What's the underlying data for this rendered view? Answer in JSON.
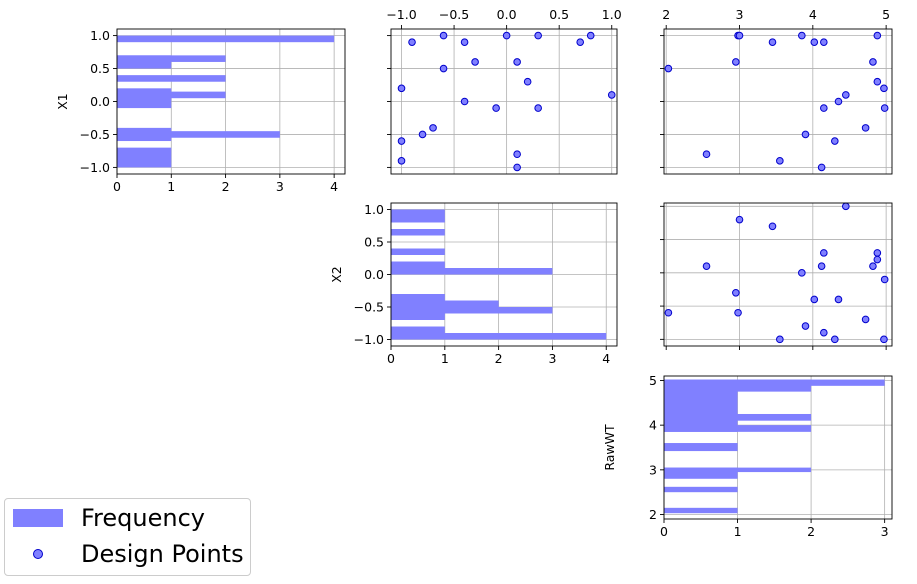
{
  "chart_data": {
    "type": "pairplot",
    "variables": [
      "X1",
      "X2",
      "RawWT"
    ],
    "colors": {
      "hist": "#8080ff",
      "marker_fill": "#8080ff",
      "marker_edge": "#0000cc",
      "grid": "#b0b0b0"
    },
    "points": {
      "X1": [
        1.0,
        1.0,
        1.0,
        1.0,
        0.9,
        0.9,
        0.9,
        0.6,
        0.6,
        0.5,
        0.3,
        0.2,
        0.1,
        0.0,
        -0.1,
        -0.1,
        -0.4,
        -0.5,
        -0.6,
        -0.8,
        -0.9,
        -1.0
      ],
      "X2": [
        -0.6,
        0.0,
        0.3,
        0.8,
        -0.9,
        0.7,
        -0.4,
        -0.3,
        0.1,
        -0.6,
        0.2,
        -1.0,
        1.0,
        -0.4,
        0.3,
        -0.1,
        -0.7,
        -0.8,
        -1.0,
        0.1,
        -1.0,
        0.1
      ],
      "RawWT": [
        2.98,
        3.85,
        4.88,
        3.0,
        4.15,
        3.45,
        4.02,
        2.95,
        4.82,
        2.03,
        4.88,
        4.97,
        4.45,
        4.35,
        4.15,
        4.98,
        4.72,
        3.9,
        4.3,
        2.55,
        3.55,
        4.12
      ]
    },
    "panels": [
      {
        "row": 0,
        "col": 0,
        "kind": "hist",
        "orientation": "horizontal",
        "variable": "X1",
        "ylabel": "X1",
        "xlim": [
          0,
          4.2
        ],
        "ylim": [
          -1.1,
          1.1
        ],
        "xticks": [
          0,
          1,
          2,
          3,
          4
        ],
        "xticklabels": [
          "0",
          "1",
          "2",
          "3",
          "4"
        ],
        "yticks": [
          -1.0,
          -0.5,
          0.0,
          0.5,
          1.0
        ],
        "yticklabels": [
          "−1.0",
          "−0.5",
          "0.0",
          "0.5",
          "1.0"
        ],
        "bars": [
          {
            "y0": -1.0,
            "y1": -0.7,
            "value": 1
          },
          {
            "y0": -0.6,
            "y1": -0.4,
            "value": 1
          },
          {
            "y0": -0.45,
            "y1": -0.55,
            "value": 3
          },
          {
            "y0": -0.1,
            "y1": 0.2,
            "value": 1
          },
          {
            "y0": 0.05,
            "y1": 0.15,
            "value": 2
          },
          {
            "y0": 0.3,
            "y1": 0.4,
            "value": 2
          },
          {
            "y0": 0.5,
            "y1": 0.7,
            "value": 1
          },
          {
            "y0": 0.6,
            "y1": 0.7,
            "value": 2
          },
          {
            "y0": 0.9,
            "y1": 1.0,
            "value": 4
          }
        ]
      },
      {
        "row": 0,
        "col": 1,
        "kind": "scatter",
        "x": "X2",
        "y": "X1",
        "xlim": [
          -1.1,
          1.05
        ],
        "ylim": [
          -1.1,
          1.1
        ],
        "xticks": [
          -1.0,
          -0.5,
          0.0,
          0.5,
          1.0
        ],
        "xticklabels": [
          "−1.0",
          "−0.5",
          "0.0",
          "0.5",
          "1.0"
        ],
        "xtick_side": "top",
        "yticks": [
          -1.0,
          -0.5,
          0.0,
          0.5,
          1.0
        ]
      },
      {
        "row": 0,
        "col": 2,
        "kind": "scatter",
        "x": "RawWT",
        "y": "X1",
        "xlim": [
          1.97,
          5.08
        ],
        "ylim": [
          -1.1,
          1.1
        ],
        "xticks": [
          2,
          3,
          4,
          5
        ],
        "xticklabels": [
          "2",
          "3",
          "4",
          "5"
        ],
        "xtick_side": "top",
        "yticks": [
          -1.0,
          -0.5,
          0.0,
          0.5,
          1.0
        ]
      },
      {
        "row": 1,
        "col": 1,
        "kind": "hist",
        "orientation": "horizontal",
        "variable": "X2",
        "ylabel": "X2",
        "xlim": [
          0,
          4.2
        ],
        "ylim": [
          -1.1,
          1.1
        ],
        "xticks": [
          0,
          1,
          2,
          3,
          4
        ],
        "xticklabels": [
          "0",
          "1",
          "2",
          "3",
          "4"
        ],
        "yticks": [
          -1.0,
          -0.5,
          0.0,
          0.5,
          1.0
        ],
        "yticklabels": [
          "−1.0",
          "−0.5",
          "0.0",
          "0.5",
          "1.0"
        ],
        "bars": [
          {
            "y0": -1.0,
            "y1": -0.8,
            "value": 1
          },
          {
            "y0": -0.9,
            "y1": -1.0,
            "value": 4
          },
          {
            "y0": -0.7,
            "y1": -0.3,
            "value": 1
          },
          {
            "y0": -0.6,
            "y1": -0.5,
            "value": 3
          },
          {
            "y0": -0.5,
            "y1": -0.4,
            "value": 2
          },
          {
            "y0": 0.0,
            "y1": 0.2,
            "value": 1
          },
          {
            "y0": 0.0,
            "y1": 0.1,
            "value": 3
          },
          {
            "y0": 0.3,
            "y1": 0.4,
            "value": 1
          },
          {
            "y0": 0.6,
            "y1": 0.7,
            "value": 1
          },
          {
            "y0": 0.8,
            "y1": 1.0,
            "value": 1
          }
        ]
      },
      {
        "row": 1,
        "col": 2,
        "kind": "scatter",
        "x": "RawWT",
        "y": "X2",
        "xlim": [
          1.97,
          5.08
        ],
        "ylim": [
          -1.1,
          1.05
        ],
        "xticks": [
          2,
          3,
          4,
          5
        ],
        "yticks": [
          -1.0,
          -0.5,
          0.0,
          0.5,
          1.0
        ]
      },
      {
        "row": 2,
        "col": 2,
        "kind": "hist",
        "orientation": "horizontal",
        "variable": "RawWT",
        "ylabel": "RawWT",
        "xlim": [
          0,
          3.1
        ],
        "ylim": [
          1.9,
          5.1
        ],
        "xticks": [
          0,
          1,
          2,
          3
        ],
        "xticklabels": [
          "0",
          "1",
          "2",
          "3"
        ],
        "yticks": [
          2,
          3,
          4,
          5
        ],
        "yticklabels": [
          "2",
          "3",
          "4",
          "5"
        ],
        "bars": [
          {
            "y0": 2.03,
            "y1": 2.15,
            "value": 1
          },
          {
            "y0": 2.5,
            "y1": 2.62,
            "value": 1
          },
          {
            "y0": 2.8,
            "y1": 3.05,
            "value": 1
          },
          {
            "y0": 2.95,
            "y1": 3.05,
            "value": 2
          },
          {
            "y0": 3.42,
            "y1": 3.6,
            "value": 1
          },
          {
            "y0": 3.85,
            "y1": 5.02,
            "value": 1
          },
          {
            "y0": 3.85,
            "y1": 4.0,
            "value": 2
          },
          {
            "y0": 4.1,
            "y1": 4.25,
            "value": 2
          },
          {
            "y0": 4.75,
            "y1": 5.02,
            "value": 2
          },
          {
            "y0": 4.88,
            "y1": 5.02,
            "value": 3
          }
        ]
      }
    ]
  },
  "legend": {
    "items": [
      {
        "label": "Frequency",
        "kind": "patch"
      },
      {
        "label": "Design Points",
        "kind": "marker"
      }
    ]
  }
}
